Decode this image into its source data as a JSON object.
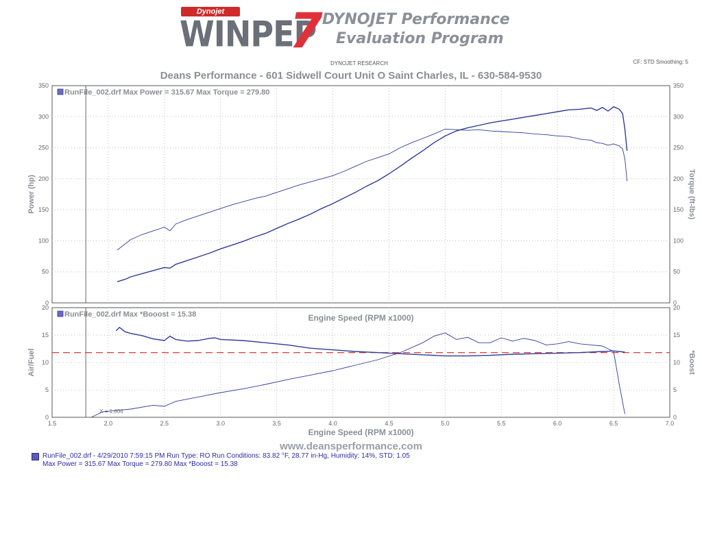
{
  "header": {
    "logo_badge": "Dynojet",
    "logo_name": "WINPEP",
    "logo_version": "7",
    "logo_tagline_1": "DYNOJET Performance",
    "logo_tagline_2": "Evaluation Program",
    "research": "DYNOJET RESEARCH",
    "settings": "CF: STD  Smoothing: 5",
    "shop": "Deans Performance - 601 Sidwell Court Unit O Saint Charles, IL - 630-584-9530"
  },
  "website": "www.deansperformance.com",
  "footer": {
    "line1": "RunFile_002.drf - 4/29/2010 7:59:15 PM  Run Type: RO  Run Conditions: 83.82 °F, 28.77 in-Hg,  Humidity:  14%, STD: 1.05",
    "line2": "Max Power = 315.67  Max Torque = 279.80  Max *Booost = 15.38"
  },
  "colors": {
    "series": "#2e3a9a",
    "reference": "#d83a3a",
    "grid": "#bdbdbd",
    "axis_text": "#8a8e95"
  },
  "chart_data": [
    {
      "type": "line",
      "legend": "RunFile_002.drf Max Power = 315.67     Max Torque = 279.80",
      "xlabel": "Engine Speed (RPM x1000)",
      "ylabel": "Power (hp)",
      "y2label": "Torque (ft-lbs)",
      "xlim": [
        1.5,
        7.0
      ],
      "ylim": [
        0,
        350
      ],
      "y2lim": [
        0,
        350
      ],
      "x_ticks": [
        1.5,
        2.0,
        2.5,
        3.0,
        3.5,
        4.0,
        4.5,
        5.0,
        5.5,
        6.0,
        6.5,
        7.0
      ],
      "y_ticks": [
        0,
        50,
        100,
        150,
        200,
        250,
        300,
        350
      ],
      "grid": true,
      "marker_rpm": 1.8,
      "series": [
        {
          "name": "Power",
          "x": [
            2.08,
            2.15,
            2.2,
            2.3,
            2.4,
            2.5,
            2.55,
            2.6,
            2.7,
            2.8,
            2.9,
            3.0,
            3.1,
            3.2,
            3.3,
            3.4,
            3.5,
            3.6,
            3.7,
            3.8,
            3.9,
            4.0,
            4.1,
            4.2,
            4.3,
            4.4,
            4.5,
            4.6,
            4.7,
            4.8,
            4.9,
            5.0,
            5.1,
            5.2,
            5.3,
            5.4,
            5.5,
            5.6,
            5.7,
            5.8,
            5.9,
            6.0,
            6.1,
            6.2,
            6.3,
            6.35,
            6.4,
            6.45,
            6.5,
            6.55,
            6.58,
            6.6,
            6.62
          ],
          "values": [
            34,
            38,
            42,
            47,
            52,
            57,
            56,
            62,
            68,
            74,
            80,
            87,
            93,
            99,
            106,
            112,
            120,
            128,
            135,
            143,
            152,
            160,
            169,
            178,
            188,
            197,
            208,
            220,
            233,
            245,
            258,
            269,
            277,
            282,
            286,
            290,
            293,
            296,
            299,
            302,
            305,
            308,
            311,
            312,
            314,
            310,
            315,
            309,
            316,
            312,
            305,
            280,
            245
          ]
        },
        {
          "name": "Torque",
          "x": [
            2.08,
            2.15,
            2.2,
            2.3,
            2.4,
            2.5,
            2.55,
            2.6,
            2.7,
            2.8,
            2.9,
            3.0,
            3.1,
            3.2,
            3.3,
            3.4,
            3.5,
            3.6,
            3.7,
            3.8,
            3.9,
            4.0,
            4.1,
            4.2,
            4.3,
            4.4,
            4.5,
            4.6,
            4.7,
            4.8,
            4.9,
            5.0,
            5.1,
            5.2,
            5.3,
            5.4,
            5.5,
            5.6,
            5.7,
            5.8,
            5.9,
            6.0,
            6.1,
            6.2,
            6.3,
            6.35,
            6.4,
            6.45,
            6.5,
            6.55,
            6.58,
            6.6,
            6.62
          ],
          "values": [
            85,
            95,
            102,
            110,
            116,
            122,
            116,
            127,
            134,
            140,
            146,
            152,
            158,
            163,
            168,
            172,
            178,
            184,
            190,
            195,
            200,
            205,
            212,
            220,
            228,
            234,
            240,
            250,
            258,
            265,
            272,
            280,
            279,
            278,
            279,
            277,
            276,
            275,
            274,
            272,
            271,
            269,
            268,
            264,
            262,
            258,
            257,
            254,
            256,
            253,
            248,
            232,
            196
          ]
        }
      ]
    },
    {
      "type": "line",
      "legend": "RunFile_002.drf Max *Booost = 15.38",
      "xlabel": "",
      "ylabel": "Air/Fuel",
      "y2label": "*Boost",
      "xlim": [
        1.5,
        7.0
      ],
      "ylim": [
        0,
        20
      ],
      "y2lim": [
        0,
        20
      ],
      "x_ticks": [
        1.5,
        2.0,
        2.5,
        3.0,
        3.5,
        4.0,
        4.5,
        5.0,
        5.5,
        6.0,
        6.5,
        7.0
      ],
      "y_ticks": [
        0,
        5,
        10,
        15,
        20
      ],
      "grid": true,
      "marker_rpm": 1.8,
      "marker_label": "X = 1.804",
      "reference_y": 11.8,
      "series": [
        {
          "name": "Air/Fuel",
          "x": [
            2.07,
            2.1,
            2.15,
            2.2,
            2.3,
            2.4,
            2.5,
            2.55,
            2.6,
            2.7,
            2.8,
            2.9,
            2.95,
            3.0,
            3.2,
            3.4,
            3.6,
            3.8,
            4.0,
            4.2,
            4.4,
            4.6,
            4.8,
            5.0,
            5.2,
            5.4,
            5.6,
            5.8,
            6.0,
            6.2,
            6.4,
            6.5,
            6.55,
            6.6
          ],
          "values": [
            15.8,
            16.4,
            15.6,
            15.3,
            14.9,
            14.3,
            14.0,
            14.8,
            14.2,
            13.9,
            14.0,
            14.4,
            14.5,
            14.2,
            14.0,
            13.6,
            13.2,
            12.6,
            12.3,
            12.0,
            11.8,
            11.6,
            11.4,
            11.2,
            11.2,
            11.3,
            11.5,
            11.6,
            11.7,
            11.8,
            12.0,
            12.1,
            12.0,
            11.9
          ]
        },
        {
          "name": "*Boost",
          "x": [
            1.85,
            1.95,
            2.05,
            2.2,
            2.4,
            2.5,
            2.6,
            2.8,
            3.0,
            3.2,
            3.4,
            3.6,
            3.8,
            4.0,
            4.2,
            4.4,
            4.6,
            4.8,
            4.9,
            5.0,
            5.1,
            5.2,
            5.3,
            5.4,
            5.5,
            5.6,
            5.7,
            5.8,
            5.9,
            6.0,
            6.1,
            6.2,
            6.3,
            6.4,
            6.5,
            6.55,
            6.6
          ],
          "values": [
            0.0,
            1.0,
            1.2,
            1.5,
            2.2,
            2.0,
            2.9,
            3.7,
            4.5,
            5.2,
            6.0,
            6.9,
            7.7,
            8.5,
            9.5,
            10.5,
            11.8,
            13.6,
            14.8,
            15.4,
            14.2,
            14.6,
            13.6,
            13.6,
            14.5,
            13.9,
            14.4,
            14.0,
            13.2,
            13.4,
            13.8,
            13.4,
            13.2,
            13.0,
            12.0,
            6.0,
            0.6
          ]
        }
      ]
    }
  ]
}
